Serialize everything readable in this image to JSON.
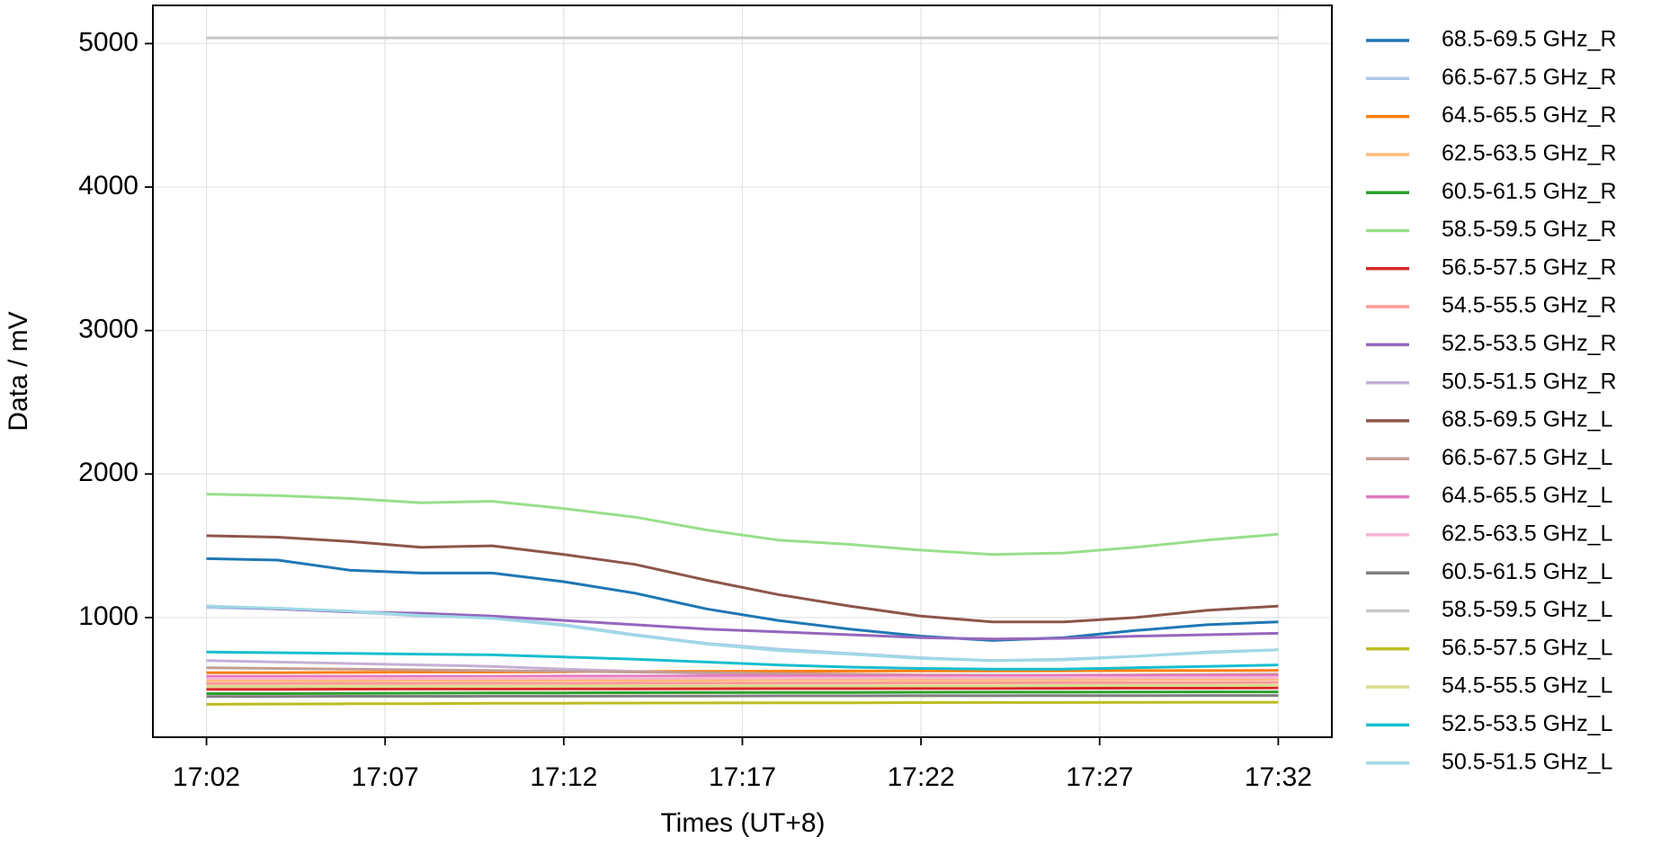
{
  "chart_data": {
    "type": "line",
    "x_label": "Times (UT+8)",
    "y_label": "Data / mV",
    "x": [
      "17:02",
      "17:04",
      "17:06",
      "17:08",
      "17:10",
      "17:12",
      "17:14",
      "17:16",
      "17:18",
      "17:20",
      "17:22",
      "17:24",
      "17:26",
      "17:28",
      "17:30",
      "17:32"
    ],
    "xticks": [
      "17:02",
      "17:07",
      "17:12",
      "17:17",
      "17:22",
      "17:27",
      "17:32"
    ],
    "ylim": [
      166,
      5266
    ],
    "yticks": [
      1000,
      2000,
      3000,
      4000,
      5000
    ],
    "grid": true,
    "legend": "outside right",
    "series": [
      {
        "name": "68.5-69.5 GHz_R",
        "color": "#1f77b4",
        "values": [
          1410,
          1400,
          1330,
          1310,
          1310,
          1250,
          1170,
          1060,
          980,
          920,
          870,
          840,
          860,
          910,
          950,
          970
        ]
      },
      {
        "name": "66.5-67.5 GHz_R",
        "color": "#aec7e8",
        "values": [
          1070,
          1060,
          1040,
          1010,
          1000,
          950,
          880,
          820,
          780,
          750,
          720,
          700,
          710,
          730,
          760,
          775
        ]
      },
      {
        "name": "64.5-65.5 GHz_R",
        "color": "#ff7f0e",
        "values": [
          615,
          615,
          618,
          620,
          620,
          622,
          624,
          625,
          626,
          627,
          628,
          628,
          629,
          630,
          630,
          632
        ]
      },
      {
        "name": "62.5-63.5 GHz_R",
        "color": "#ffbb78",
        "values": [
          560,
          560,
          561,
          562,
          562,
          563,
          563,
          564,
          565,
          565,
          566,
          566,
          567,
          568,
          568,
          570
        ]
      },
      {
        "name": "60.5-61.5 GHz_R",
        "color": "#2ca02c",
        "values": [
          470,
          470,
          472,
          473,
          474,
          475,
          476,
          477,
          478,
          478,
          479,
          480,
          480,
          481,
          482,
          482
        ]
      },
      {
        "name": "58.5-59.5 GHz_R",
        "color": "#98df8a",
        "values": [
          1860,
          1850,
          1830,
          1800,
          1810,
          1760,
          1700,
          1610,
          1540,
          1510,
          1470,
          1440,
          1450,
          1490,
          1540,
          1580
        ]
      },
      {
        "name": "56.5-57.5 GHz_R",
        "color": "#d62728",
        "values": [
          500,
          500,
          501,
          502,
          502,
          503,
          503,
          504,
          505,
          505,
          506,
          506,
          507,
          508,
          508,
          510
        ]
      },
      {
        "name": "54.5-55.5 GHz_R",
        "color": "#ff9896",
        "values": [
          540,
          540,
          541,
          541,
          542,
          542,
          543,
          543,
          544,
          544,
          545,
          545,
          546,
          546,
          547,
          548
        ]
      },
      {
        "name": "52.5-53.5 GHz_R",
        "color": "#9467bd",
        "values": [
          1080,
          1060,
          1040,
          1030,
          1010,
          980,
          950,
          920,
          900,
          880,
          860,
          850,
          855,
          870,
          880,
          890
        ]
      },
      {
        "name": "50.5-51.5 GHz_R",
        "color": "#c5b0d5",
        "values": [
          700,
          690,
          680,
          670,
          660,
          640,
          625,
          610,
          600,
          595,
          590,
          588,
          590,
          595,
          598,
          600
        ]
      },
      {
        "name": "68.5-69.5 GHz_L",
        "color": "#8c564b",
        "values": [
          1570,
          1560,
          1530,
          1490,
          1500,
          1440,
          1370,
          1260,
          1160,
          1080,
          1010,
          970,
          970,
          1000,
          1050,
          1080
        ]
      },
      {
        "name": "66.5-67.5 GHz_L",
        "color": "#c49c94",
        "values": [
          650,
          645,
          640,
          635,
          630,
          625,
          620,
          615,
          610,
          605,
          600,
          598,
          598,
          600,
          602,
          605
        ]
      },
      {
        "name": "64.5-65.5 GHz_L",
        "color": "#e377c2",
        "values": [
          590,
          590,
          590,
          591,
          591,
          592,
          592,
          593,
          593,
          594,
          594,
          595,
          595,
          596,
          596,
          597
        ]
      },
      {
        "name": "62.5-63.5 GHz_L",
        "color": "#f7b6d2",
        "values": [
          575,
          575,
          576,
          576,
          577,
          577,
          578,
          578,
          579,
          579,
          580,
          580,
          581,
          581,
          582,
          582
        ]
      },
      {
        "name": "60.5-61.5 GHz_L",
        "color": "#7f7f7f",
        "values": [
          450,
          450,
          451,
          451,
          452,
          452,
          453,
          453,
          454,
          454,
          455,
          455,
          456,
          456,
          457,
          457
        ]
      },
      {
        "name": "58.5-59.5 GHz_L",
        "color": "#c7c7c7",
        "values": [
          5040,
          5040,
          5040,
          5040,
          5040,
          5040,
          5040,
          5040,
          5040,
          5040,
          5040,
          5040,
          5040,
          5040,
          5040,
          5040
        ]
      },
      {
        "name": "56.5-57.5 GHz_L",
        "color": "#bcbd22",
        "values": [
          395,
          397,
          399,
          400,
          402,
          403,
          404,
          405,
          406,
          406,
          407,
          408,
          408,
          409,
          410,
          410
        ]
      },
      {
        "name": "54.5-55.5 GHz_L",
        "color": "#dbdb8d",
        "values": [
          520,
          520,
          521,
          521,
          522,
          522,
          523,
          523,
          524,
          524,
          525,
          525,
          526,
          526,
          527,
          527
        ]
      },
      {
        "name": "52.5-53.5 GHz_L",
        "color": "#17becf",
        "values": [
          760,
          755,
          750,
          745,
          740,
          725,
          710,
          690,
          670,
          655,
          645,
          640,
          640,
          650,
          660,
          670
        ]
      },
      {
        "name": "50.5-51.5 GHz_L",
        "color": "#9edae5",
        "values": [
          1080,
          1065,
          1045,
          1015,
          995,
          945,
          875,
          815,
          770,
          745,
          715,
          700,
          705,
          730,
          755,
          775
        ]
      }
    ]
  }
}
